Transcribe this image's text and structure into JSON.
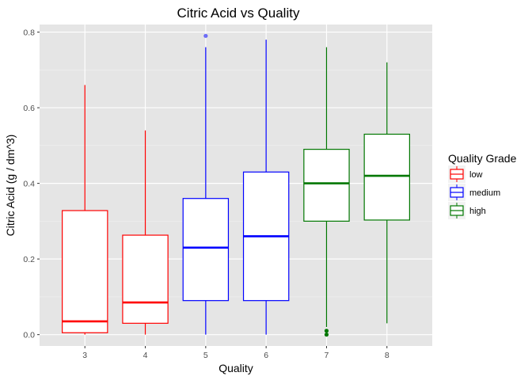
{
  "chart_data": {
    "type": "box",
    "title": "Citric Acid vs Quality",
    "xlabel": "Quality",
    "ylabel": "Citric Acid (g / dm^3)",
    "ylim": [
      -0.03,
      0.82
    ],
    "yticks": [
      "0.0",
      "0.2",
      "0.4",
      "0.6",
      "0.8"
    ],
    "grid": true,
    "legend": {
      "title": "Quality Grade",
      "placement": "right",
      "entries": [
        {
          "name": "low",
          "color": "#ff0000"
        },
        {
          "name": "medium",
          "color": "#0000ff"
        },
        {
          "name": "high",
          "color": "#007700"
        }
      ]
    },
    "categories": [
      "3",
      "4",
      "5",
      "6",
      "7",
      "8"
    ],
    "boxes": [
      {
        "x": "3",
        "grade": "low",
        "whisker_low": 0.0,
        "q1": 0.005,
        "median": 0.035,
        "q3": 0.328,
        "whisker_high": 0.66,
        "outliers": []
      },
      {
        "x": "4",
        "grade": "low",
        "whisker_low": 0.0,
        "q1": 0.03,
        "median": 0.085,
        "q3": 0.263,
        "whisker_high": 0.54,
        "outliers": []
      },
      {
        "x": "5",
        "grade": "medium",
        "whisker_low": 0.0,
        "q1": 0.09,
        "median": 0.23,
        "q3": 0.36,
        "whisker_high": 0.76,
        "outliers": [
          0.79
        ]
      },
      {
        "x": "6",
        "grade": "medium",
        "whisker_low": 0.0,
        "q1": 0.09,
        "median": 0.26,
        "q3": 0.43,
        "whisker_high": 0.78,
        "outliers": []
      },
      {
        "x": "7",
        "grade": "high",
        "whisker_low": 0.02,
        "q1": 0.3,
        "median": 0.4,
        "q3": 0.49,
        "whisker_high": 0.76,
        "outliers": [
          0.0,
          0.01
        ]
      },
      {
        "x": "8",
        "grade": "high",
        "whisker_low": 0.03,
        "q1": 0.303,
        "median": 0.42,
        "q3": 0.53,
        "whisker_high": 0.72,
        "outliers": []
      }
    ]
  }
}
